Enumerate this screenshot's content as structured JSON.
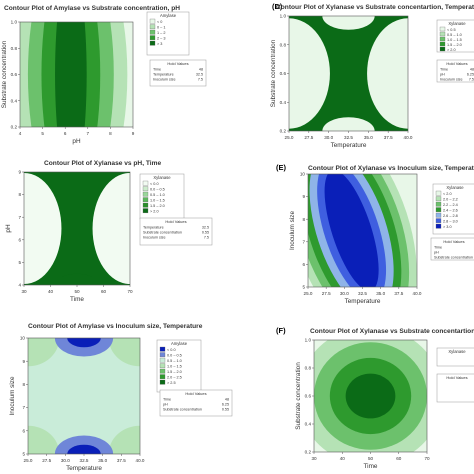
{
  "chart_data": [
    {
      "type": "heatmap",
      "panel_letter": "",
      "title": "Contour Plot of Amylase vs Substrate concentration, pH",
      "xlabel": "pH",
      "ylabel": "Substrate concentration",
      "x_ticks": [
        "4",
        "5",
        "6",
        "7",
        "8",
        "9"
      ],
      "y_ticks": [
        "0.2",
        "0.4",
        "0.6",
        "0.8",
        "1.0"
      ],
      "legend_title": "Amylase",
      "legend_entries": [
        "< 0",
        "0 – 1",
        "1 – 2",
        "2 – 3",
        "> 3"
      ],
      "hold_title": "Hold Values",
      "hold_values": [
        [
          "Time",
          "48"
        ],
        [
          "Temperature",
          "32.5"
        ],
        [
          "Inoculum size",
          "7.5"
        ]
      ],
      "colors": [
        "#e8f7e8",
        "#b5e2b5",
        "#6cc16c",
        "#2e9a2e",
        "#0b6b17"
      ]
    },
    {
      "type": "heatmap",
      "panel_letter": "(D)",
      "title": "Contour Plot of Xylanase vs Substrate concentartion, Temperature",
      "xlabel": "Temperature",
      "ylabel": "Substrate concentration",
      "x_ticks": [
        "25.0",
        "27.5",
        "30.0",
        "32.5",
        "35.0",
        "37.5",
        "40.0"
      ],
      "y_ticks": [
        "0.2",
        "0.4",
        "0.6",
        "0.8",
        "1.0"
      ],
      "legend_title": "Xylanase",
      "legend_entries": [
        "< 0.5",
        "0.5 – 1.0",
        "1.0 – 1.5",
        "1.5 – 2.0",
        "> 2.0"
      ],
      "hold_title": "Hold Values",
      "hold_values": [
        [
          "Time",
          "48"
        ],
        [
          "pH",
          "6.25"
        ],
        [
          "Inoculum size",
          "7.5"
        ]
      ],
      "colors": [
        "#e8f7e8",
        "#b5e2b5",
        "#6cc16c",
        "#2e9a2e",
        "#0b6b17"
      ]
    },
    {
      "type": "heatmap",
      "panel_letter": "",
      "title": "Contour Plot of Xylanase vs pH, Time",
      "xlabel": "Time",
      "ylabel": "pH",
      "x_ticks": [
        "30",
        "40",
        "50",
        "60",
        "70"
      ],
      "y_ticks": [
        "4",
        "5",
        "6",
        "7",
        "8",
        "9"
      ],
      "legend_title": "Xylanase",
      "legend_entries": [
        "< 0.0",
        "0.0 – 0.5",
        "0.5 – 1.0",
        "1.0 – 1.5",
        "1.5 – 2.0",
        "> 2.0"
      ],
      "hold_title": "Hold Values",
      "hold_values": [
        [
          "Temperature",
          "32.5"
        ],
        [
          "Substrate concentration",
          "0.55"
        ],
        [
          "Inoculum size",
          "7.5"
        ]
      ],
      "colors": [
        "#f2fbf2",
        "#cdeccd",
        "#9ad69a",
        "#5cb85c",
        "#2a8f2a",
        "#0b6b17"
      ]
    },
    {
      "type": "heatmap",
      "panel_letter": "(E)",
      "title": "Contour Plot of Xylanase vs Inoculum size, Temperature",
      "xlabel": "Temperature",
      "ylabel": "Inoculum size",
      "x_ticks": [
        "25.0",
        "27.5",
        "30.0",
        "32.5",
        "35.0",
        "37.5",
        "40.0"
      ],
      "y_ticks": [
        "5",
        "6",
        "7",
        "8",
        "9",
        "10"
      ],
      "legend_title": "Xylanase",
      "legend_entries": [
        "< 2.0",
        "2.0 – 2.2",
        "2.2 – 2.4",
        "2.4 – 2.6",
        "2.6 – 2.8",
        "2.8 – 3.0",
        "> 3.0"
      ],
      "hold_title": "Hold Values",
      "hold_values": [
        [
          "Time",
          ""
        ],
        [
          "pH",
          ""
        ],
        [
          "Substrate concentration",
          ""
        ]
      ],
      "colors": [
        "#e8f7e8",
        "#b5e2b5",
        "#6cc16c",
        "#2e9a2e",
        "#8fb4e8",
        "#3f5fe0",
        "#0a1fb8"
      ]
    },
    {
      "type": "heatmap",
      "panel_letter": "",
      "title": "Contour Plot of Amylase vs Inoculum size, Temperature",
      "xlabel": "Temperature",
      "ylabel": "Inoculum size",
      "x_ticks": [
        "25.0",
        "27.5",
        "30.0",
        "32.5",
        "35.0",
        "37.5",
        "40.0"
      ],
      "y_ticks": [
        "5",
        "6",
        "7",
        "8",
        "9",
        "10"
      ],
      "legend_title": "Amylase",
      "legend_entries": [
        "< 0.0",
        "0.0 – 0.5",
        "0.5 – 1.0",
        "1.0 – 1.5",
        "1.5 – 2.0",
        "2.0 – 2.5",
        "> 2.5"
      ],
      "hold_title": "Hold Values",
      "hold_values": [
        [
          "Time",
          "48"
        ],
        [
          "pH",
          "6.25"
        ],
        [
          "Substrate concentration",
          "0.55"
        ]
      ],
      "colors": [
        "#0a1fb8",
        "#6f86d8",
        "#c9ecd9",
        "#b5e2b5",
        "#6cc16c",
        "#2e9a2e",
        "#0b6b17"
      ]
    },
    {
      "type": "heatmap",
      "panel_letter": "(F)",
      "title": "Contour Plot of Xylanase vs Substrate concentartion, Time",
      "xlabel": "Time",
      "ylabel": "Substrate concentration",
      "x_ticks": [
        "30",
        "40",
        "50",
        "60",
        "70"
      ],
      "y_ticks": [
        "0.2",
        "0.4",
        "0.6",
        "0.8",
        "1.0"
      ],
      "legend_title": "Xylanase",
      "legend_entries": [],
      "hold_title": "Hold Values",
      "hold_values": [],
      "colors": [
        "#e8f7e8",
        "#b5e2b5",
        "#6cc16c",
        "#2e9a2e",
        "#0b6b17"
      ]
    }
  ]
}
